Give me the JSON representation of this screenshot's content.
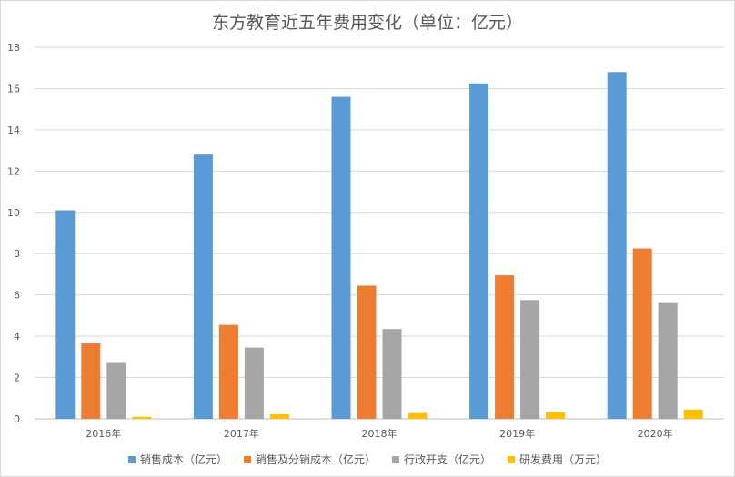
{
  "chart_data": {
    "type": "bar",
    "title": "东方教育近五年费用变化（单位：亿元）",
    "categories": [
      "2016年",
      "2017年",
      "2018年",
      "2019年",
      "2020年"
    ],
    "series": [
      {
        "name": "销售成本（亿元）",
        "color": "#5B9BD5",
        "values": [
          10.1,
          12.8,
          15.6,
          16.25,
          16.8
        ]
      },
      {
        "name": "销售及分销成本（亿元）",
        "color": "#ED7D31",
        "values": [
          3.65,
          4.55,
          6.45,
          6.95,
          8.25
        ]
      },
      {
        "name": "行政开支（亿元）",
        "color": "#A5A5A5",
        "values": [
          2.75,
          3.45,
          4.35,
          5.75,
          5.65
        ]
      },
      {
        "name": "研发费用（万元）",
        "color": "#FFC000",
        "values": [
          0.1,
          0.22,
          0.28,
          0.32,
          0.45
        ]
      }
    ],
    "ylim": [
      0,
      18
    ],
    "yticks": [
      0,
      2,
      4,
      6,
      8,
      10,
      12,
      14,
      16,
      18
    ],
    "grid": true,
    "legend": "bottom"
  }
}
